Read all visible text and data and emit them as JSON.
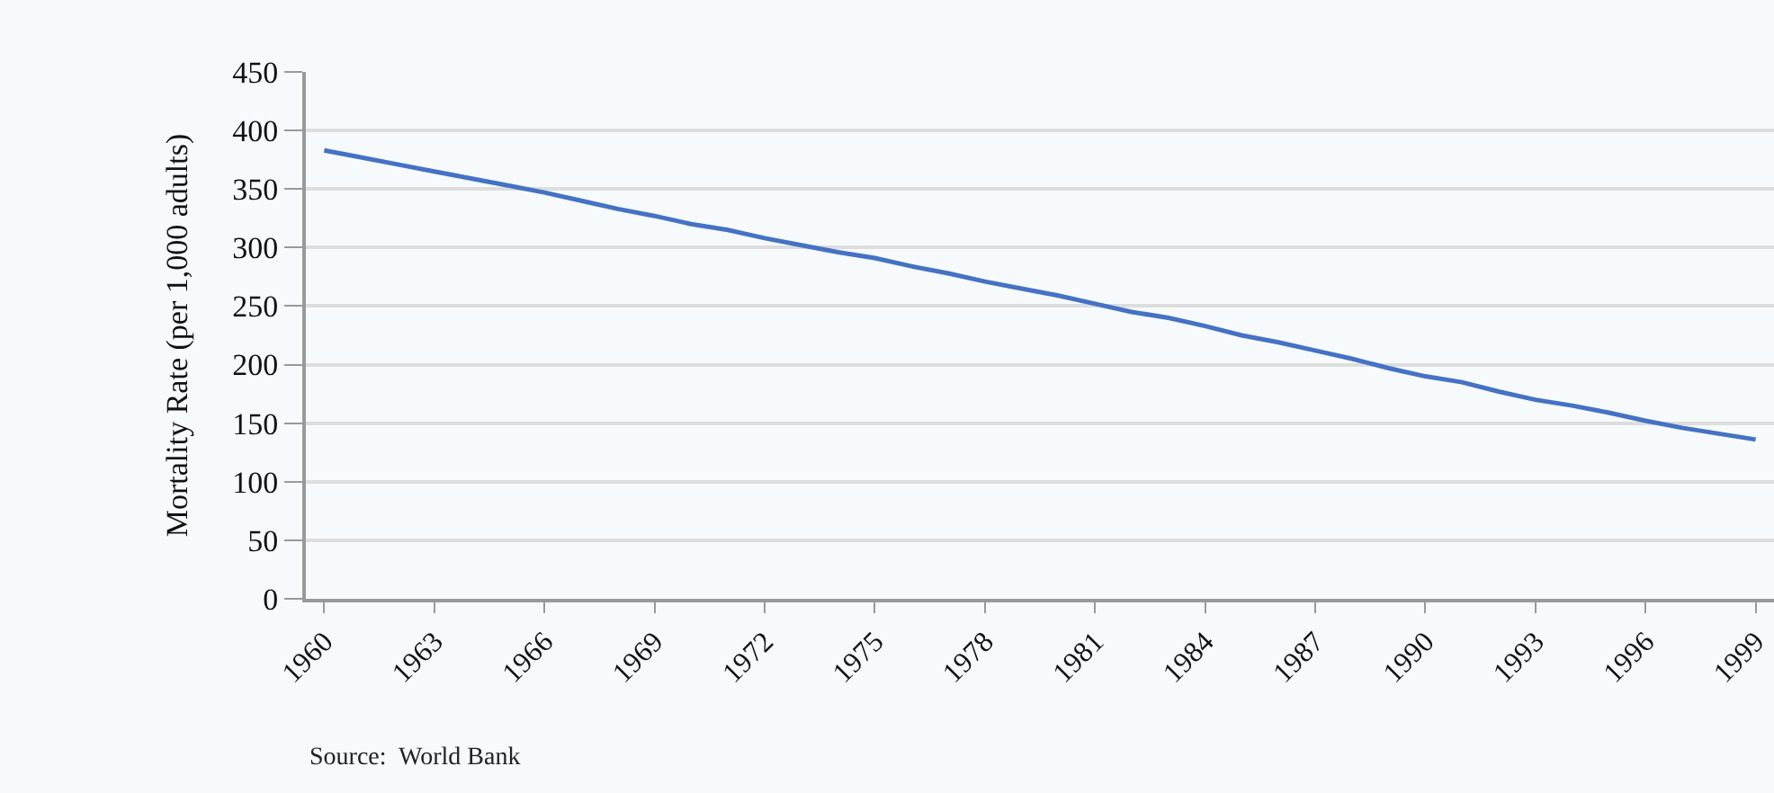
{
  "chart_data": {
    "type": "line",
    "ylabel": "Mortality Rate (per 1,000 adults)",
    "categories": [
      "1960",
      null,
      null,
      "1963",
      null,
      null,
      "1966",
      null,
      null,
      "1969",
      null,
      null,
      "1972",
      null,
      null,
      "1975",
      null,
      null,
      "1978",
      null,
      null,
      "1981",
      null,
      null,
      "1984",
      null,
      null,
      "1987",
      null,
      null,
      "1990",
      null,
      null,
      "1993",
      null,
      null,
      "1996",
      null,
      null,
      "1999"
    ],
    "series": [
      {
        "color": "#4472c4",
        "values": [
          383,
          377,
          371,
          365,
          359,
          353,
          347,
          340,
          333,
          327,
          320,
          315,
          308,
          302,
          296,
          291,
          284,
          278,
          271,
          265,
          259,
          252,
          245,
          240,
          233,
          225,
          219,
          212,
          205,
          197,
          190,
          185,
          177,
          170,
          165,
          159,
          152,
          146,
          141,
          136
        ]
      }
    ],
    "ylim": [
      0,
      450
    ],
    "yticks": [
      0,
      50,
      100,
      150,
      200,
      250,
      300,
      350,
      400,
      450
    ],
    "grid": "y",
    "marker": "none",
    "line_style": "solid",
    "annotations": [
      "Source:  World Bank"
    ]
  }
}
